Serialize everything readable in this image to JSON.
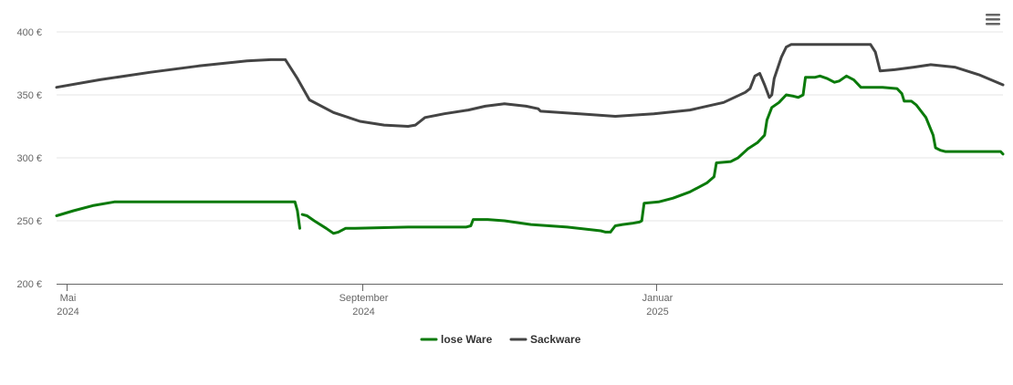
{
  "chart_data": {
    "type": "line",
    "y_axis": {
      "ticks": [
        200,
        250,
        300,
        350,
        400
      ],
      "tick_labels": [
        "200 €",
        "250 €",
        "300 €",
        "350 €",
        "400 €"
      ],
      "ylim": [
        200,
        400
      ],
      "grid": true
    },
    "x_axis": {
      "xlim": [
        "2024-04-27",
        "2025-05-25"
      ],
      "ticks": [
        {
          "date": "2024-05-01",
          "label_line1": "Mai",
          "label_line2": "2024"
        },
        {
          "date": "2024-09-01",
          "label_line1": "September",
          "label_line2": "2024"
        },
        {
          "date": "2025-01-01",
          "label_line1": "Januar",
          "label_line2": "2025"
        }
      ]
    },
    "legend_position": "bottom-center",
    "series": [
      {
        "name": "lose Ware",
        "color": "#0a7a0a",
        "segments": [
          [
            [
              "2024-04-27",
              254
            ],
            [
              "2024-05-04",
              258
            ],
            [
              "2024-05-12",
              262
            ],
            [
              "2024-05-21",
              265
            ],
            [
              "2024-06-15",
              265
            ],
            [
              "2024-07-15",
              265
            ],
            [
              "2024-08-04",
              265
            ],
            [
              "2024-08-05",
              258
            ],
            [
              "2024-08-06",
              244
            ]
          ],
          [
            [
              "2024-08-07",
              255
            ],
            [
              "2024-08-09",
              254
            ],
            [
              "2024-08-12",
              250
            ],
            [
              "2024-08-17",
              244
            ],
            [
              "2024-08-20",
              240
            ],
            [
              "2024-08-22",
              241
            ],
            [
              "2024-08-25",
              244
            ],
            [
              "2024-08-29",
              244
            ],
            [
              "2024-09-20",
              245
            ],
            [
              "2024-10-14",
              245
            ],
            [
              "2024-10-16",
              246
            ],
            [
              "2024-10-17",
              251
            ],
            [
              "2024-10-23",
              251
            ],
            [
              "2024-10-30",
              250
            ],
            [
              "2024-11-10",
              247
            ],
            [
              "2024-11-25",
              245
            ],
            [
              "2024-12-09",
              242
            ],
            [
              "2024-12-11",
              241
            ],
            [
              "2024-12-13",
              241
            ],
            [
              "2024-12-15",
              246
            ],
            [
              "2024-12-18",
              247
            ],
            [
              "2024-12-22",
              248
            ],
            [
              "2024-12-25",
              249
            ],
            [
              "2024-12-26",
              250
            ],
            [
              "2024-12-27",
              264
            ],
            [
              "2025-01-02",
              265
            ],
            [
              "2025-01-08",
              268
            ],
            [
              "2025-01-15",
              273
            ],
            [
              "2025-01-22",
              280
            ],
            [
              "2025-01-25",
              285
            ],
            [
              "2025-01-26",
              296
            ],
            [
              "2025-02-01",
              297
            ],
            [
              "2025-02-04",
              300
            ],
            [
              "2025-02-08",
              307
            ],
            [
              "2025-02-12",
              312
            ],
            [
              "2025-02-15",
              318
            ],
            [
              "2025-02-16",
              330
            ],
            [
              "2025-02-18",
              340
            ],
            [
              "2025-02-21",
              344
            ],
            [
              "2025-02-24",
              350
            ],
            [
              "2025-02-27",
              349
            ],
            [
              "2025-03-01",
              348
            ],
            [
              "2025-03-03",
              350
            ],
            [
              "2025-03-04",
              364
            ],
            [
              "2025-03-08",
              364
            ],
            [
              "2025-03-10",
              365
            ],
            [
              "2025-03-13",
              363
            ],
            [
              "2025-03-16",
              360
            ],
            [
              "2025-03-18",
              361
            ],
            [
              "2025-03-21",
              365
            ],
            [
              "2025-03-24",
              362
            ],
            [
              "2025-03-27",
              356
            ],
            [
              "2025-04-05",
              356
            ],
            [
              "2025-04-11",
              355
            ],
            [
              "2025-04-13",
              351
            ],
            [
              "2025-04-14",
              345
            ],
            [
              "2025-04-17",
              345
            ],
            [
              "2025-04-19",
              342
            ],
            [
              "2025-04-23",
              332
            ],
            [
              "2025-04-26",
              318
            ],
            [
              "2025-04-27",
              308
            ],
            [
              "2025-04-29",
              306
            ],
            [
              "2025-05-01",
              305
            ],
            [
              "2025-05-24",
              305
            ],
            [
              "2025-05-25",
              303
            ]
          ]
        ]
      },
      {
        "name": "Sackware",
        "color": "#444444",
        "segments": [
          [
            [
              "2024-04-27",
              356
            ],
            [
              "2024-05-15",
              362
            ],
            [
              "2024-06-05",
              368
            ],
            [
              "2024-06-25",
              373
            ],
            [
              "2024-07-15",
              377
            ],
            [
              "2024-07-25",
              378
            ],
            [
              "2024-07-31",
              378
            ],
            [
              "2024-08-01",
              375
            ],
            [
              "2024-08-05",
              363
            ],
            [
              "2024-08-10",
              346
            ],
            [
              "2024-08-20",
              336
            ],
            [
              "2024-08-31",
              329
            ],
            [
              "2024-09-10",
              326
            ],
            [
              "2024-09-20",
              325
            ],
            [
              "2024-09-23",
              326
            ],
            [
              "2024-09-25",
              329
            ],
            [
              "2024-09-27",
              332
            ],
            [
              "2024-10-05",
              335
            ],
            [
              "2024-10-15",
              338
            ],
            [
              "2024-10-22",
              341
            ],
            [
              "2024-10-30",
              343
            ],
            [
              "2024-11-08",
              341
            ],
            [
              "2024-11-13",
              339
            ],
            [
              "2024-11-14",
              337
            ],
            [
              "2024-11-30",
              335
            ],
            [
              "2024-12-15",
              333
            ],
            [
              "2024-12-31",
              335
            ],
            [
              "2025-01-15",
              338
            ],
            [
              "2025-01-29",
              344
            ],
            [
              "2025-02-07",
              352
            ],
            [
              "2025-02-09",
              355
            ],
            [
              "2025-02-11",
              365
            ],
            [
              "2025-02-13",
              367
            ],
            [
              "2025-02-15",
              358
            ],
            [
              "2025-02-17",
              348
            ],
            [
              "2025-02-18",
              350
            ],
            [
              "2025-02-19",
              363
            ],
            [
              "2025-02-22",
              380
            ],
            [
              "2025-02-24",
              388
            ],
            [
              "2025-02-26",
              390
            ],
            [
              "2025-03-15",
              390
            ],
            [
              "2025-03-31",
              390
            ],
            [
              "2025-04-02",
              384
            ],
            [
              "2025-04-04",
              369
            ],
            [
              "2025-04-10",
              370
            ],
            [
              "2025-04-18",
              372
            ],
            [
              "2025-04-25",
              374
            ],
            [
              "2025-05-05",
              372
            ],
            [
              "2025-05-15",
              366
            ],
            [
              "2025-05-25",
              358
            ]
          ]
        ]
      }
    ]
  },
  "menu": {
    "icon": "hamburger-menu-icon"
  }
}
